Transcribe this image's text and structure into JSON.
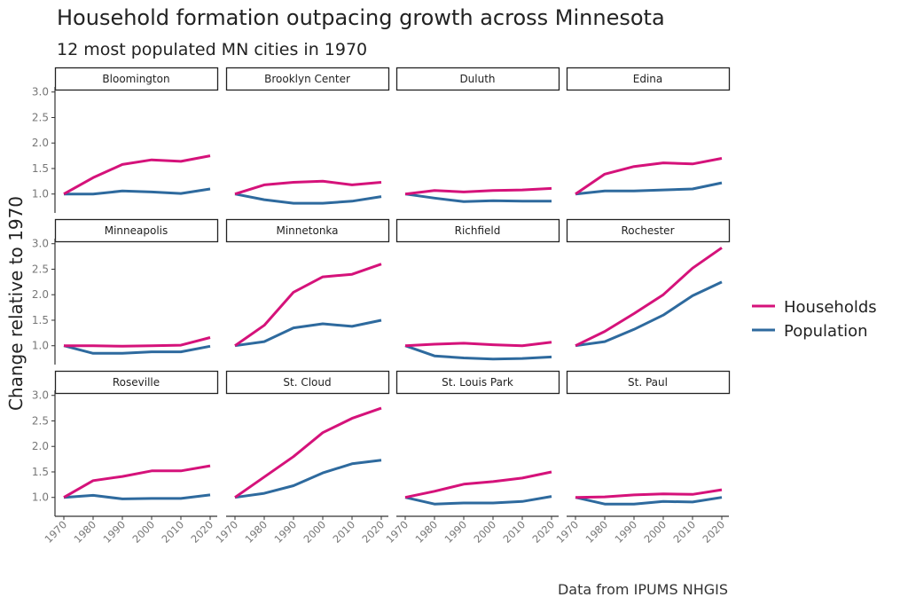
{
  "chart_data": {
    "type": "line",
    "title": "Household formation outpacing growth across Minnesota",
    "subtitle": "12 most populated MN cities in 1970",
    "ylabel": "Change relative to 1970",
    "xlabel": "",
    "caption": "Data from IPUMS NHGIS",
    "x": [
      1970,
      1980,
      1990,
      2000,
      2010,
      2020
    ],
    "ylim": [
      0.63,
      3.03
    ],
    "yticks": [
      1.0,
      1.5,
      2.0,
      2.5,
      3.0
    ],
    "ytick_labels": [
      "1.0",
      "1.5",
      "2.0",
      "2.5",
      "3.0"
    ],
    "xtick_labels": [
      "1970",
      "1980",
      "1990",
      "2000",
      "2010",
      "2020"
    ],
    "grid": false,
    "legend_position": "right",
    "series_meta": [
      {
        "name": "Households",
        "color": "#D5127A"
      },
      {
        "name": "Population",
        "color": "#2E6A9E"
      }
    ],
    "facets": [
      {
        "city": "Bloomington",
        "households": [
          1.0,
          1.32,
          1.58,
          1.67,
          1.64,
          1.75
        ],
        "population": [
          1.0,
          1.0,
          1.06,
          1.04,
          1.01,
          1.1
        ]
      },
      {
        "city": "Brooklyn Center",
        "households": [
          1.0,
          1.18,
          1.23,
          1.25,
          1.18,
          1.23
        ],
        "population": [
          1.0,
          0.89,
          0.82,
          0.82,
          0.86,
          0.95
        ]
      },
      {
        "city": "Duluth",
        "households": [
          1.0,
          1.07,
          1.04,
          1.07,
          1.08,
          1.11
        ],
        "population": [
          1.0,
          0.92,
          0.85,
          0.87,
          0.86,
          0.86
        ]
      },
      {
        "city": "Edina",
        "households": [
          1.0,
          1.39,
          1.54,
          1.61,
          1.59,
          1.7
        ],
        "population": [
          1.0,
          1.06,
          1.06,
          1.08,
          1.1,
          1.22
        ]
      },
      {
        "city": "Minneapolis",
        "households": [
          1.0,
          1.0,
          0.99,
          1.0,
          1.01,
          1.16
        ],
        "population": [
          1.0,
          0.85,
          0.85,
          0.88,
          0.88,
          0.99
        ]
      },
      {
        "city": "Minnetonka",
        "households": [
          1.0,
          1.4,
          2.05,
          2.35,
          2.4,
          2.6
        ],
        "population": [
          1.0,
          1.08,
          1.35,
          1.43,
          1.38,
          1.5
        ]
      },
      {
        "city": "Richfield",
        "households": [
          1.0,
          1.03,
          1.05,
          1.02,
          1.0,
          1.07
        ],
        "population": [
          1.0,
          0.8,
          0.76,
          0.74,
          0.75,
          0.78
        ]
      },
      {
        "city": "Rochester",
        "households": [
          1.0,
          1.28,
          1.63,
          2.0,
          2.52,
          2.92
        ],
        "population": [
          1.0,
          1.08,
          1.32,
          1.6,
          1.98,
          2.25
        ]
      },
      {
        "city": "Roseville",
        "households": [
          1.0,
          1.33,
          1.41,
          1.52,
          1.52,
          1.62
        ],
        "population": [
          1.0,
          1.04,
          0.97,
          0.98,
          0.98,
          1.05
        ]
      },
      {
        "city": "St. Cloud",
        "households": [
          1.0,
          1.4,
          1.8,
          2.27,
          2.55,
          2.75
        ],
        "population": [
          1.0,
          1.08,
          1.23,
          1.48,
          1.66,
          1.73
        ]
      },
      {
        "city": "St. Louis Park",
        "households": [
          1.0,
          1.12,
          1.26,
          1.31,
          1.38,
          1.5
        ],
        "population": [
          1.0,
          0.87,
          0.89,
          0.89,
          0.92,
          1.02
        ]
      },
      {
        "city": "St. Paul",
        "households": [
          1.0,
          1.01,
          1.05,
          1.07,
          1.06,
          1.15
        ],
        "population": [
          1.0,
          0.87,
          0.87,
          0.92,
          0.91,
          1.0
        ]
      }
    ]
  }
}
